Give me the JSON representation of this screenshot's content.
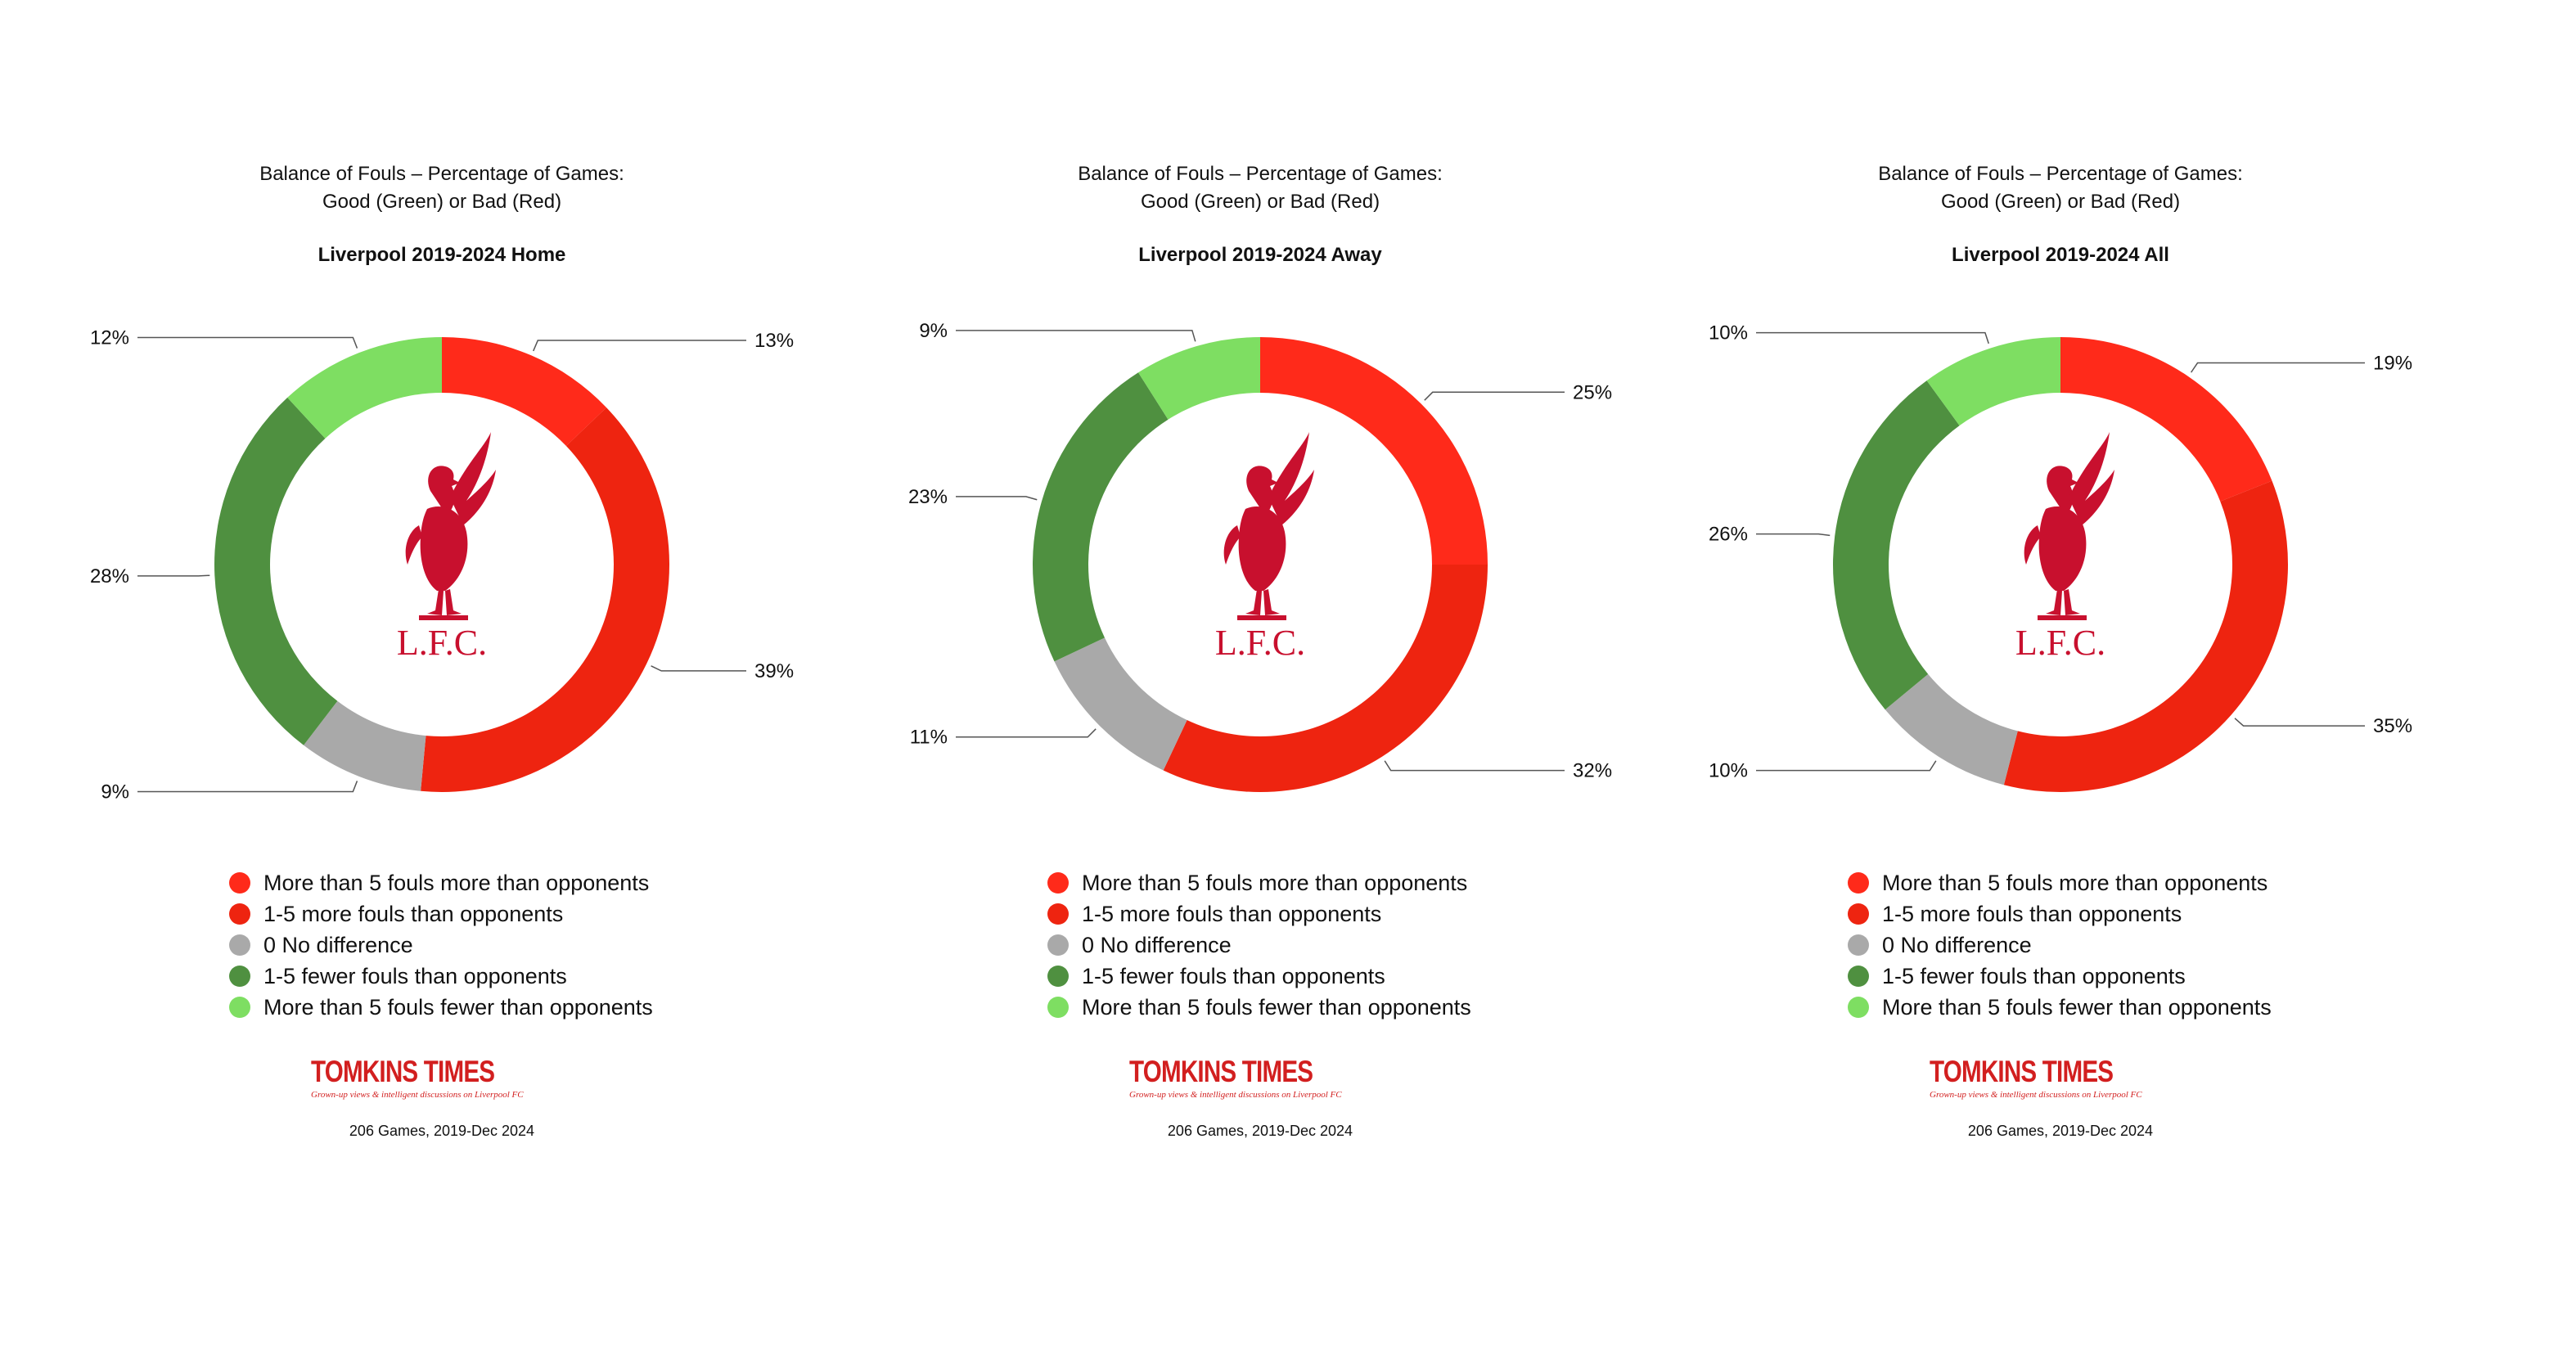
{
  "colors": {
    "more_than_5_more": "#ff2a1a",
    "one_to_5_more": "#ee2410",
    "no_difference": "#a9a9a9",
    "one_to_5_fewer": "#4f9040",
    "more_than_5_fewer": "#7ede62",
    "club_red": "#c8102e",
    "brand_red": "#d21f1f"
  },
  "panels": [
    {
      "title_line1": "Balance of Fouls – Percentage of Games:",
      "title_line2": "Good (Green) or Bad (Red)",
      "subtitle": "Liverpool 2019-2024 Home",
      "crest_text": "L.F.C.",
      "brand_name": "TOMKINS TIMES",
      "brand_tagline": "Grown-up views & intelligent discussions on Liverpool FC",
      "footnote": "206 Games, 2019-Dec 2024"
    },
    {
      "title_line1": "Balance of Fouls – Percentage of Games:",
      "title_line2": "Good (Green) or Bad (Red)",
      "subtitle": "Liverpool 2019-2024 Away",
      "crest_text": "L.F.C.",
      "brand_name": "TOMKINS TIMES",
      "brand_tagline": "Grown-up views & intelligent discussions on Liverpool FC",
      "footnote": "206 Games, 2019-Dec 2024"
    },
    {
      "title_line1": "Balance of Fouls – Percentage of Games:",
      "title_line2": "Good (Green) or Bad (Red)",
      "subtitle": "Liverpool 2019-2024 All",
      "crest_text": "L.F.C.",
      "brand_name": "TOMKINS TIMES",
      "brand_tagline": "Grown-up views & intelligent discussions on Liverpool FC",
      "footnote": "206 Games, 2019-Dec 2024"
    }
  ],
  "chart_data": [
    {
      "type": "pie",
      "style": "donut",
      "title": "Balance of Fouls – Percentage of Games: Good (Green) or Bad (Red)",
      "subtitle": "Liverpool 2019-2024 Home",
      "categories": [
        "More than 5 fouls more than opponents",
        "1-5 more fouls than opponents",
        "0 No difference",
        "1-5 fewer fouls than opponents",
        "More than 5 fouls fewer than opponents"
      ],
      "values": [
        13,
        39,
        9,
        28,
        12
      ],
      "value_labels": [
        "13%",
        "39%",
        "9%",
        "28%",
        "12%"
      ],
      "legend": "bottom"
    },
    {
      "type": "pie",
      "style": "donut",
      "title": "Balance of Fouls – Percentage of Games: Good (Green) or Bad (Red)",
      "subtitle": "Liverpool 2019-2024 Away",
      "categories": [
        "More than 5 fouls more than opponents",
        "1-5 more fouls than opponents",
        "0 No difference",
        "1-5 fewer fouls than opponents",
        "More than 5 fouls fewer than opponents"
      ],
      "values": [
        25,
        32,
        11,
        23,
        9
      ],
      "value_labels": [
        "25%",
        "32%",
        "11%",
        "23%",
        "9%"
      ],
      "legend": "bottom"
    },
    {
      "type": "pie",
      "style": "donut",
      "title": "Balance of Fouls – Percentage of Games: Good (Green) or Bad (Red)",
      "subtitle": "Liverpool 2019-2024 All",
      "categories": [
        "More than 5 fouls more than opponents",
        "1-5 more fouls than opponents",
        "0 No difference",
        "1-5 fewer fouls than opponents",
        "More than 5 fouls fewer than opponents"
      ],
      "values": [
        19,
        35,
        10,
        26,
        10
      ],
      "value_labels": [
        "19%",
        "35%",
        "10%",
        "26%",
        "10%"
      ],
      "legend": "bottom"
    }
  ]
}
